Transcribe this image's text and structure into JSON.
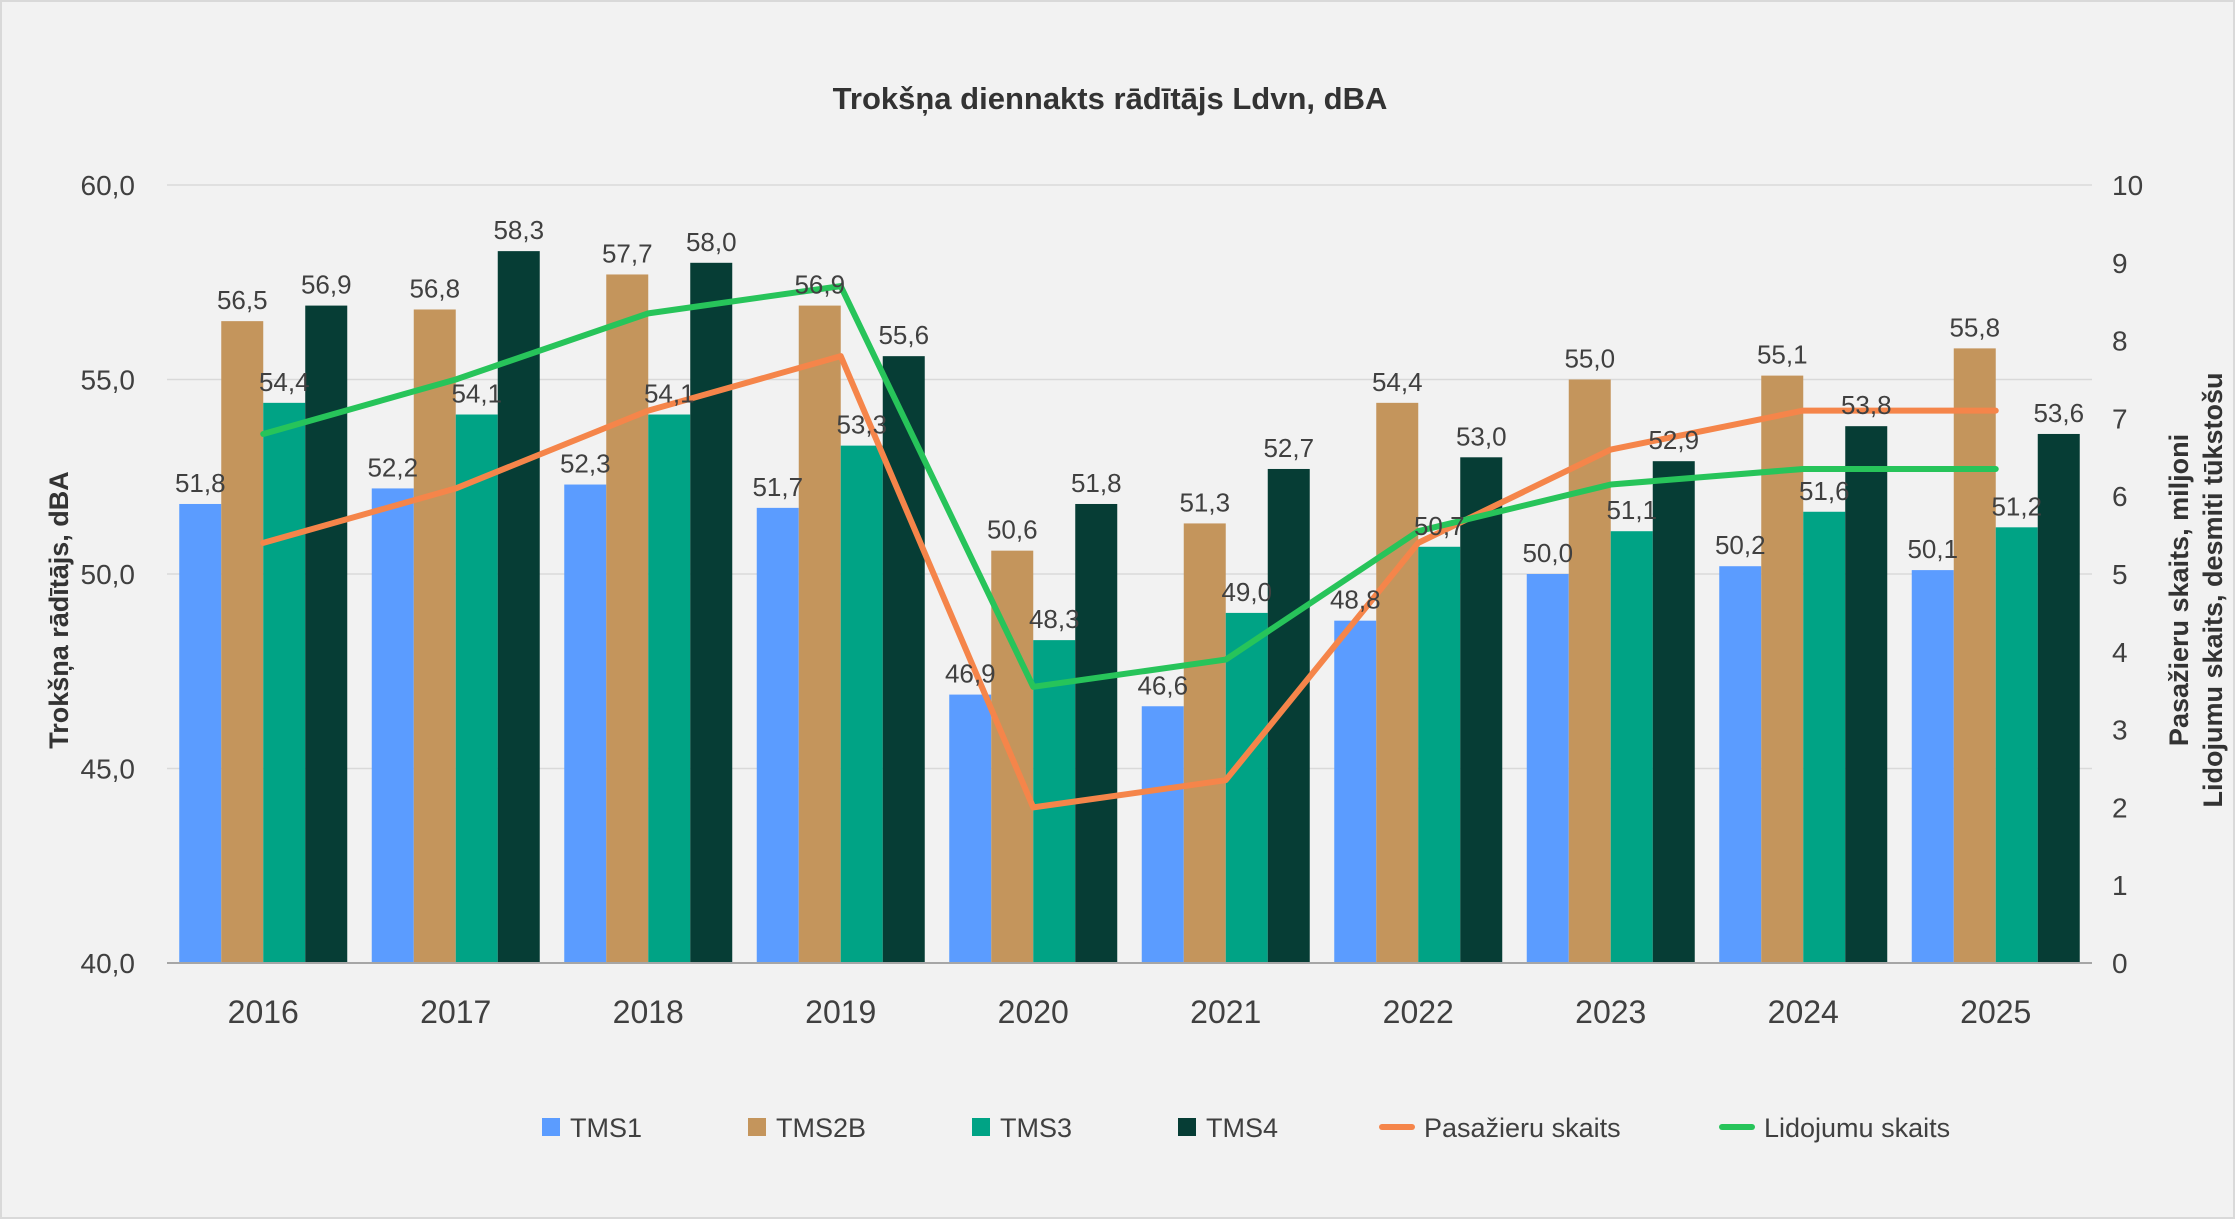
{
  "chart_data": {
    "type": "bar",
    "title": "Trokšņa diennakts rādītājs Ldvn, dBA",
    "ylabel": "Trokšņa rādītājs, dBA",
    "y2label_line1": "Pasažieru skaits, miljoni",
    "y2label_line2": "Lidojumu skaits, desmiti tūkstošu",
    "ylim": [
      40,
      60
    ],
    "y2lim": [
      0,
      10
    ],
    "y_ticks": [
      "40,0",
      "45,0",
      "50,0",
      "55,0",
      "60,0"
    ],
    "y2_ticks": [
      "0",
      "1",
      "2",
      "3",
      "4",
      "5",
      "6",
      "7",
      "8",
      "9",
      "10"
    ],
    "categories": [
      "2016",
      "2017",
      "2018",
      "2019",
      "2020",
      "2021",
      "2022",
      "2023",
      "2024",
      "2025"
    ],
    "grid": true,
    "legend_position": "bottom",
    "series": [
      {
        "name": "TMS1",
        "type": "bar",
        "axis": "left",
        "color": "#5b9cff",
        "values": [
          51.8,
          52.2,
          52.3,
          51.7,
          46.9,
          46.6,
          48.8,
          50.0,
          50.2,
          50.1
        ],
        "labels": [
          "51,8",
          "52,2",
          "52,3",
          "51,7",
          "46,9",
          "46,6",
          "48,8",
          "50,0",
          "50,2",
          "50,1"
        ]
      },
      {
        "name": "TMS2B",
        "type": "bar",
        "axis": "left",
        "color": "#c4955c",
        "values": [
          56.5,
          56.8,
          57.7,
          56.9,
          50.6,
          51.3,
          54.4,
          55.0,
          55.1,
          55.8
        ],
        "labels": [
          "56,5",
          "56,8",
          "57,7",
          "56,9",
          "50,6",
          "51,3",
          "54,4",
          "55,0",
          "55,1",
          "55,8"
        ]
      },
      {
        "name": "TMS3",
        "type": "bar",
        "axis": "left",
        "color": "#00a385",
        "values": [
          54.4,
          54.1,
          54.1,
          53.3,
          48.3,
          49.0,
          50.7,
          51.1,
          51.6,
          51.2
        ],
        "labels": [
          "54,4",
          "54,1",
          "54,1",
          "53,3",
          "48,3",
          "49,0",
          "50,7",
          "51,1",
          "51,6",
          "51,2"
        ]
      },
      {
        "name": "TMS4",
        "type": "bar",
        "axis": "left",
        "color": "#063d35",
        "values": [
          56.9,
          58.3,
          58.0,
          55.6,
          51.8,
          52.7,
          53.0,
          52.9,
          53.8,
          53.6
        ],
        "labels": [
          "56,9",
          "58,3",
          "58,0",
          "55,6",
          "51,8",
          "52,7",
          "53,0",
          "52,9",
          "53,8",
          "53,6"
        ]
      },
      {
        "name": "Pasažieru skaits",
        "type": "line",
        "axis": "right",
        "color": "#f5854a",
        "values": [
          5.4,
          6.1,
          7.1,
          7.8,
          2.0,
          2.35,
          5.4,
          6.6,
          7.1,
          7.1
        ]
      },
      {
        "name": "Lidojumu skaits",
        "type": "line",
        "axis": "right",
        "color": "#27c45a",
        "values": [
          6.8,
          7.5,
          8.35,
          8.7,
          3.55,
          3.9,
          5.55,
          6.15,
          6.35,
          6.35
        ]
      }
    ]
  }
}
